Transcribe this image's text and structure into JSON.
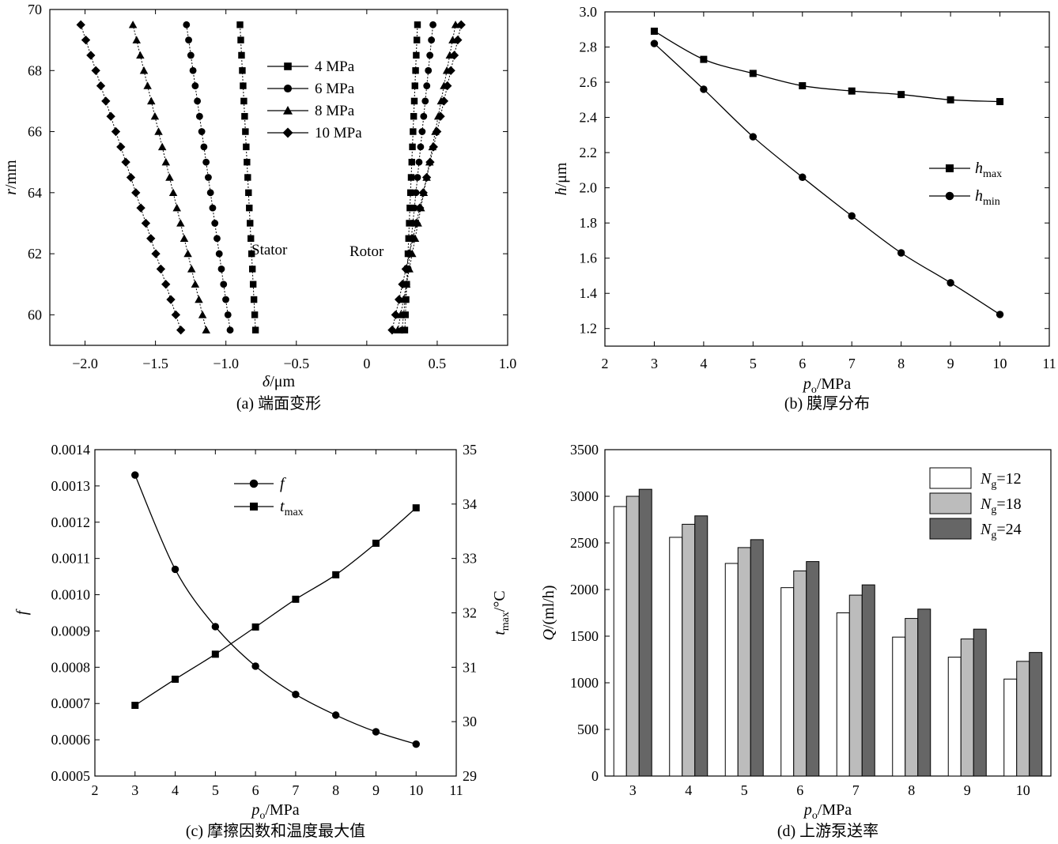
{
  "chart_data": [
    {
      "id": "a",
      "type": "scatter",
      "caption": "(a) 端面变形",
      "xlabel_sym": "δ",
      "xlabel_unit": "/μm",
      "ylabel_sym": "r",
      "ylabel_unit": "/mm",
      "xlim": [
        -2.25,
        1.0
      ],
      "ylim": [
        59,
        70
      ],
      "xticks": [
        -2.0,
        -1.5,
        -1.0,
        -0.5,
        0,
        0.5,
        1.0
      ],
      "xtick_labels": [
        "−2.0",
        "−1.5",
        "−1.0",
        "−0.5",
        "0",
        "0.5",
        "1.0"
      ],
      "yticks": [
        60,
        62,
        64,
        66,
        68,
        70
      ],
      "ytick_labels": [
        "60",
        "62",
        "64",
        "66",
        "68",
        "70"
      ],
      "grid": false,
      "legend_position": "top-middle",
      "annotations": [
        "Stator",
        "Rotor"
      ],
      "r_values": [
        59.5,
        60.0,
        60.5,
        61.0,
        61.5,
        62.0,
        62.5,
        63.0,
        63.5,
        64.0,
        64.5,
        65.0,
        65.5,
        66.0,
        66.5,
        67.0,
        67.5,
        68.0,
        68.5,
        69.0,
        69.5
      ],
      "series": [
        {
          "name": "4 MPa",
          "marker": "square",
          "stator": {
            "start": -0.79,
            "end": -0.9
          },
          "rotor": {
            "start": 0.27,
            "end": 0.36
          }
        },
        {
          "name": "6 MPa",
          "marker": "circle",
          "stator": {
            "start": -0.97,
            "end": -1.28
          },
          "rotor": {
            "start": 0.25,
            "end": 0.47
          }
        },
        {
          "name": "8 MPa",
          "marker": "triangle",
          "stator": {
            "start": -1.14,
            "end": -1.66
          },
          "rotor": {
            "start": 0.22,
            "end": 0.63
          }
        },
        {
          "name": "10 MPa",
          "marker": "diamond",
          "stator": {
            "start": -1.32,
            "end": -2.03
          },
          "rotor": {
            "start": 0.18,
            "end": 0.67
          }
        }
      ]
    },
    {
      "id": "b",
      "type": "line",
      "caption": "(b) 膜厚分布",
      "xlabel_sym": "p",
      "xlabel_sub": "o",
      "xlabel_unit": "/MPa",
      "ylabel_sym": "h",
      "ylabel_unit": "/μm",
      "xlim": [
        2,
        11
      ],
      "ylim": [
        1.1,
        3.0
      ],
      "xticks": [
        2,
        3,
        4,
        5,
        6,
        7,
        8,
        9,
        10,
        11
      ],
      "xtick_labels": [
        "2",
        "3",
        "4",
        "5",
        "6",
        "7",
        "8",
        "9",
        "10",
        "11"
      ],
      "yticks": [
        1.2,
        1.4,
        1.6,
        1.8,
        2.0,
        2.2,
        2.4,
        2.6,
        2.8,
        3.0
      ],
      "ytick_labels": [
        "1.2",
        "1.4",
        "1.6",
        "1.8",
        "2.0",
        "2.2",
        "2.4",
        "2.6",
        "2.8",
        "3.0"
      ],
      "grid": false,
      "legend_position": "right-middle",
      "x": [
        3,
        4,
        5,
        6,
        7,
        8,
        9,
        10
      ],
      "series": [
        {
          "name": "h",
          "sub": "max",
          "marker": "square",
          "values": [
            2.89,
            2.73,
            2.65,
            2.58,
            2.55,
            2.53,
            2.5,
            2.49
          ]
        },
        {
          "name": "h",
          "sub": "min",
          "marker": "circle",
          "values": [
            2.82,
            2.56,
            2.29,
            2.06,
            1.84,
            1.63,
            1.46,
            1.28
          ]
        }
      ]
    },
    {
      "id": "c",
      "type": "line",
      "caption": "(c) 摩擦因数和温度最大值",
      "xlabel_sym": "p",
      "xlabel_sub": "o",
      "xlabel_unit": "/MPa",
      "ylabel_sym": "f",
      "y2label_sym": "t",
      "y2label_sub": "max",
      "y2label_unit": "/°C",
      "xlim": [
        2,
        11
      ],
      "ylim": [
        0.0005,
        0.0014
      ],
      "y2lim": [
        29,
        35
      ],
      "xticks": [
        2,
        3,
        4,
        5,
        6,
        7,
        8,
        9,
        10,
        11
      ],
      "xtick_labels": [
        "2",
        "3",
        "4",
        "5",
        "6",
        "7",
        "8",
        "9",
        "10",
        "11"
      ],
      "yticks": [
        0.0005,
        0.0006,
        0.0007,
        0.0008,
        0.0009,
        0.001,
        0.0011,
        0.0012,
        0.0013,
        0.0014
      ],
      "ytick_labels": [
        "0.0005",
        "0.0006",
        "0.0007",
        "0.0008",
        "0.0009",
        "0.0010",
        "0.0011",
        "0.0012",
        "0.0013",
        "0.0014"
      ],
      "y2ticks": [
        29,
        30,
        31,
        32,
        33,
        34,
        35
      ],
      "y2tick_labels": [
        "29",
        "30",
        "31",
        "32",
        "33",
        "34",
        "35"
      ],
      "grid": false,
      "legend_position": "top-center",
      "x": [
        3,
        4,
        5,
        6,
        7,
        8,
        9,
        10
      ],
      "series": [
        {
          "name": "f",
          "marker": "circle",
          "axis": "left",
          "values": [
            0.00133,
            0.00107,
            0.000912,
            0.000803,
            0.000725,
            0.000668,
            0.000622,
            0.000588
          ]
        },
        {
          "name": "t",
          "sub": "max",
          "marker": "square",
          "axis": "right",
          "values": [
            30.3,
            30.78,
            31.24,
            31.74,
            32.25,
            32.7,
            33.28,
            33.93
          ]
        }
      ]
    },
    {
      "id": "d",
      "type": "bar",
      "caption": "(d) 上游泵送率",
      "xlabel_sym": "p",
      "xlabel_sub": "o",
      "xlabel_unit": "/MPa",
      "ylabel_sym": "Q",
      "ylabel_unit": "/(ml/h)",
      "ylim": [
        0,
        3500
      ],
      "yticks": [
        0,
        500,
        1000,
        1500,
        2000,
        2500,
        3000,
        3500
      ],
      "ytick_labels": [
        "0",
        "500",
        "1000",
        "1500",
        "2000",
        "2500",
        "3000",
        "3500"
      ],
      "categories": [
        "3",
        "4",
        "5",
        "6",
        "7",
        "8",
        "9",
        "10"
      ],
      "grid": false,
      "legend_position": "top-right",
      "series": [
        {
          "name": "N",
          "sub": "g",
          "suffix": "=12",
          "color": "#ffffff",
          "values": [
            2890,
            2560,
            2280,
            2020,
            1750,
            1490,
            1275,
            1040
          ]
        },
        {
          "name": "N",
          "sub": "g",
          "suffix": "=18",
          "color": "#bcbcbc",
          "values": [
            3000,
            2700,
            2450,
            2200,
            1940,
            1690,
            1470,
            1230
          ]
        },
        {
          "name": "N",
          "sub": "g",
          "suffix": "=24",
          "color": "#666666",
          "values": [
            3075,
            2790,
            2535,
            2300,
            2050,
            1790,
            1575,
            1325
          ]
        }
      ]
    }
  ]
}
